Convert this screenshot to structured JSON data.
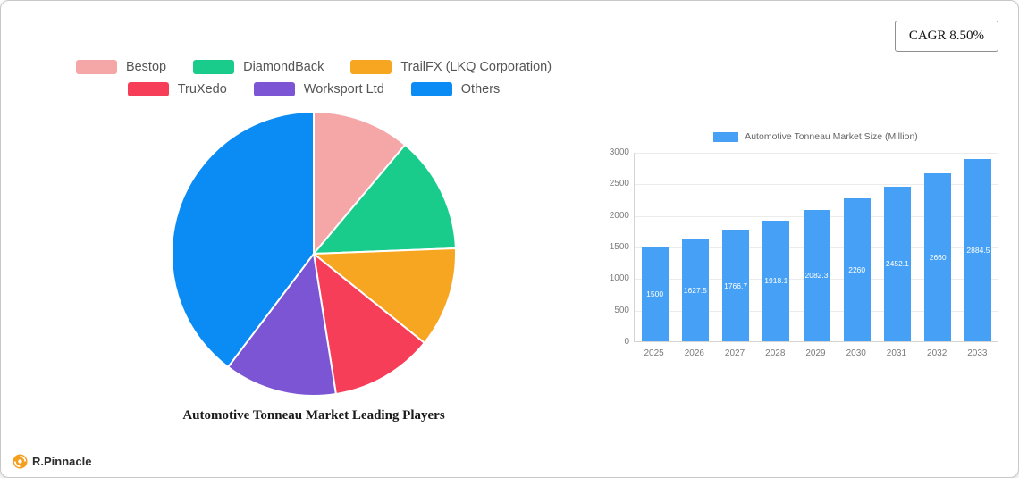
{
  "cagr": {
    "label": "CAGR 8.50%"
  },
  "brand": {
    "name": "R.Pinnacle"
  },
  "chart_data": [
    {
      "type": "pie",
      "title": "Automotive Tonneau Market Leading Players",
      "labels": [
        "Bestop",
        "DiamondBack",
        "TrailFX (LKQ Corporation)",
        "TruXedo",
        "Worksport Ltd",
        "Others"
      ],
      "values": [
        11.1,
        13.3,
        11.4,
        11.7,
        12.8,
        39.7
      ],
      "colors": [
        "#f5a6a7",
        "#19cc8c",
        "#f7a622",
        "#f63e59",
        "#7c55d4",
        "#0b8cf4"
      ],
      "legend_rows": [
        [
          0,
          1,
          2
        ],
        [
          3,
          4,
          5
        ]
      ],
      "start_angle_deg": -90,
      "direction": "clockwise",
      "legend_position": "top"
    },
    {
      "type": "bar",
      "legend_label": "Automotive Tonneau Market Size (Million)",
      "categories": [
        "2025",
        "2026",
        "2027",
        "2028",
        "2029",
        "2030",
        "2031",
        "2032",
        "2033"
      ],
      "values": [
        1500,
        1627.5,
        1766.7,
        1918.1,
        2082.3,
        2260,
        2452.1,
        2660,
        2884.5
      ],
      "value_labels": [
        "1500",
        "1627.5",
        "1766.7",
        "1918.1",
        "2082.3",
        "2260",
        "2452.1",
        "2660",
        "2884.5"
      ],
      "xlabel": "",
      "ylabel": "",
      "ylim": [
        0,
        3000
      ],
      "yticks": [
        0,
        500,
        1000,
        1500,
        2000,
        2500,
        3000
      ],
      "bar_color": "#46a0f5",
      "grid": true,
      "legend_position": "top"
    }
  ]
}
